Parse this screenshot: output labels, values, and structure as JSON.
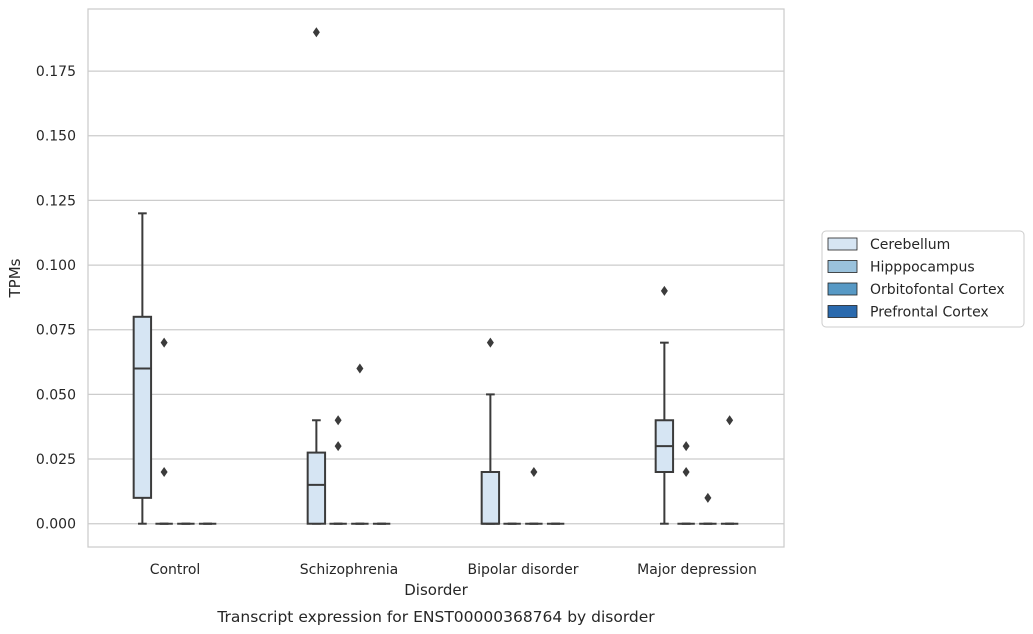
{
  "chart_data": {
    "type": "box",
    "title": "",
    "caption": "Transcript expression for ENST00000368764 by disorder",
    "xlabel": "Disorder",
    "ylabel": "TPMs",
    "ylim": [
      -0.009,
      0.199
    ],
    "yticks": [
      0.0,
      0.025,
      0.05,
      0.075,
      0.1,
      0.125,
      0.15,
      0.175
    ],
    "ytick_labels": [
      "0.000",
      "0.025",
      "0.050",
      "0.075",
      "0.100",
      "0.125",
      "0.150",
      "0.175"
    ],
    "categories": [
      "Control",
      "Schizophrenia",
      "Bipolar disorder",
      "Major depression"
    ],
    "grid": "horizontal",
    "legend_position": "right",
    "series": [
      {
        "name": "Cerebellum",
        "color": "#d6e5f3",
        "boxes": [
          {
            "q1": 0.01,
            "median": 0.06,
            "q3": 0.08,
            "whislo": 0.0,
            "whishi": 0.12,
            "fliers": []
          },
          {
            "q1": 0.0,
            "median": 0.015,
            "q3": 0.0275,
            "whislo": 0.0,
            "whishi": 0.04,
            "fliers": [
              0.19
            ]
          },
          {
            "q1": 0.0,
            "median": 0.0,
            "q3": 0.02,
            "whislo": 0.0,
            "whishi": 0.05,
            "fliers": [
              0.07
            ]
          },
          {
            "q1": 0.02,
            "median": 0.03,
            "q3": 0.04,
            "whislo": 0.0,
            "whishi": 0.07,
            "fliers": [
              0.09
            ]
          }
        ]
      },
      {
        "name": "Hipppocampus",
        "color": "#9ac2dc",
        "boxes": [
          {
            "q1": 0.0,
            "median": 0.0,
            "q3": 0.0,
            "whislo": 0.0,
            "whishi": 0.0,
            "fliers": [
              0.07,
              0.02
            ]
          },
          {
            "q1": 0.0,
            "median": 0.0,
            "q3": 0.0,
            "whislo": 0.0,
            "whishi": 0.0,
            "fliers": [
              0.04,
              0.03
            ]
          },
          {
            "q1": 0.0,
            "median": 0.0,
            "q3": 0.0,
            "whislo": 0.0,
            "whishi": 0.0,
            "fliers": []
          },
          {
            "q1": 0.0,
            "median": 0.0,
            "q3": 0.0,
            "whislo": 0.0,
            "whishi": 0.0,
            "fliers": [
              0.03,
              0.02
            ]
          }
        ]
      },
      {
        "name": "Orbitofontal Cortex",
        "color": "#5799c5",
        "boxes": [
          {
            "q1": 0.0,
            "median": 0.0,
            "q3": 0.0,
            "whislo": 0.0,
            "whishi": 0.0,
            "fliers": []
          },
          {
            "q1": 0.0,
            "median": 0.0,
            "q3": 0.0,
            "whislo": 0.0,
            "whishi": 0.0,
            "fliers": [
              0.06
            ]
          },
          {
            "q1": 0.0,
            "median": 0.0,
            "q3": 0.0,
            "whislo": 0.0,
            "whishi": 0.0,
            "fliers": [
              0.02
            ]
          },
          {
            "q1": 0.0,
            "median": 0.0,
            "q3": 0.0,
            "whislo": 0.0,
            "whishi": 0.0,
            "fliers": [
              0.01
            ]
          }
        ]
      },
      {
        "name": "Prefrontal Cortex",
        "color": "#2a6aae",
        "boxes": [
          {
            "q1": 0.0,
            "median": 0.0,
            "q3": 0.0,
            "whislo": 0.0,
            "whishi": 0.0,
            "fliers": []
          },
          {
            "q1": 0.0,
            "median": 0.0,
            "q3": 0.0,
            "whislo": 0.0,
            "whishi": 0.0,
            "fliers": []
          },
          {
            "q1": 0.0,
            "median": 0.0,
            "q3": 0.0,
            "whislo": 0.0,
            "whishi": 0.0,
            "fliers": []
          },
          {
            "q1": 0.0,
            "median": 0.0,
            "q3": 0.0,
            "whislo": 0.0,
            "whishi": 0.0,
            "fliers": [
              0.04
            ]
          }
        ]
      }
    ]
  }
}
